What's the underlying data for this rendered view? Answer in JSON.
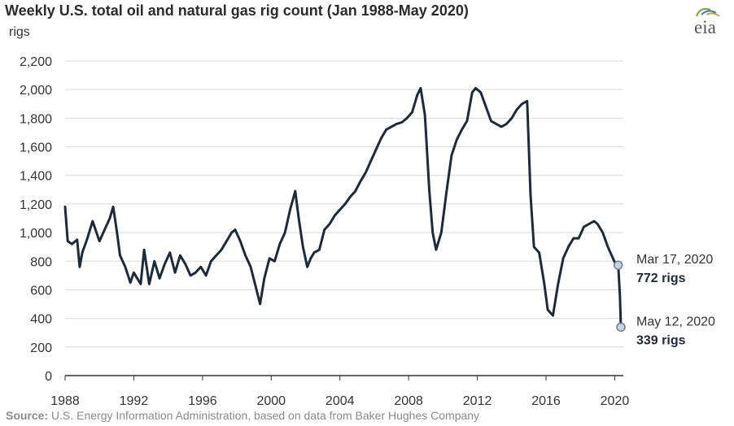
{
  "title": "Weekly U.S. total oil and natural gas rig count (Jan 1988-May 2020)",
  "unit_label": "rigs",
  "logo_text": "eia",
  "source_label": "Source:",
  "source_text": "U.S. Energy Information Administration, based on data from Baker Hughes Company",
  "colors": {
    "line": "#1b2b3c",
    "grid": "#d9d9d9",
    "marker_fill": "#c7d3de"
  },
  "chart_data": {
    "type": "line",
    "title": "Weekly U.S. total oil and natural gas rig count (Jan 1988-May 2020)",
    "ylabel": "rigs",
    "xlabel": "",
    "ylim": [
      0,
      2200
    ],
    "xlim": [
      1988,
      2020.5
    ],
    "yticks": [
      "0",
      "200",
      "400",
      "600",
      "800",
      "1,000",
      "1,200",
      "1,400",
      "1,600",
      "1,800",
      "2,000",
      "2,200"
    ],
    "xticks": [
      "1988",
      "1992",
      "1996",
      "2000",
      "2004",
      "2008",
      "2012",
      "2016",
      "2020"
    ],
    "grid": true,
    "legend": "none",
    "series": [
      {
        "x": [
          1988.0,
          1988.15,
          1988.4,
          1988.7,
          1988.85,
          1989.0,
          1989.3,
          1989.6,
          1990.0,
          1990.3,
          1990.6,
          1990.8,
          1991.0,
          1991.2,
          1991.5,
          1991.8,
          1992.0,
          1992.4,
          1992.6,
          1992.9,
          1993.2,
          1993.5,
          1993.8,
          1994.1,
          1994.4,
          1994.7,
          1995.0,
          1995.3,
          1995.6,
          1995.9,
          1996.2,
          1996.5,
          1996.8,
          1997.1,
          1997.4,
          1997.7,
          1997.9,
          1998.2,
          1998.5,
          1998.8,
          1999.1,
          1999.35,
          1999.6,
          1999.9,
          2000.2,
          2000.5,
          2000.8,
          2001.1,
          2001.4,
          2001.6,
          2001.85,
          2002.1,
          2002.3,
          2002.5,
          2002.8,
          2003.1,
          2003.4,
          2003.7,
          2004.0,
          2004.3,
          2004.6,
          2004.9,
          2005.2,
          2005.5,
          2005.8,
          2006.1,
          2006.4,
          2006.7,
          2007.0,
          2007.3,
          2007.6,
          2007.9,
          2008.2,
          2008.5,
          2008.7,
          2008.95,
          2009.2,
          2009.4,
          2009.6,
          2009.9,
          2010.2,
          2010.5,
          2010.8,
          2011.1,
          2011.4,
          2011.7,
          2011.9,
          2012.2,
          2012.5,
          2012.8,
          2013.1,
          2013.4,
          2013.7,
          2014.0,
          2014.3,
          2014.6,
          2014.9,
          2015.1,
          2015.3,
          2015.6,
          2015.9,
          2016.1,
          2016.4,
          2016.7,
          2017.0,
          2017.3,
          2017.6,
          2017.9,
          2018.2,
          2018.5,
          2018.8,
          2019.0,
          2019.3,
          2019.6,
          2019.9,
          2020.05,
          2020.2,
          2020.3,
          2020.36
        ],
        "values": [
          1180,
          940,
          920,
          950,
          760,
          860,
          960,
          1080,
          940,
          1020,
          1100,
          1180,
          1020,
          840,
          760,
          650,
          720,
          640,
          880,
          640,
          800,
          680,
          780,
          860,
          720,
          840,
          780,
          700,
          720,
          760,
          700,
          800,
          840,
          880,
          940,
          1000,
          1020,
          940,
          840,
          760,
          620,
          500,
          680,
          820,
          800,
          920,
          1000,
          1160,
          1290,
          1100,
          900,
          760,
          820,
          860,
          880,
          1020,
          1060,
          1120,
          1160,
          1200,
          1250,
          1290,
          1360,
          1420,
          1500,
          1580,
          1660,
          1720,
          1740,
          1760,
          1770,
          1800,
          1840,
          1960,
          2010,
          1820,
          1300,
          1000,
          880,
          1000,
          1280,
          1540,
          1650,
          1720,
          1780,
          1980,
          2010,
          1980,
          1880,
          1780,
          1760,
          1740,
          1760,
          1800,
          1860,
          1900,
          1920,
          1260,
          900,
          860,
          640,
          460,
          420,
          640,
          820,
          900,
          960,
          960,
          1040,
          1060,
          1080,
          1060,
          1000,
          900,
          820,
          780,
          772,
          560,
          339
        ],
        "color": "#1b2b3c"
      }
    ],
    "annotations": [
      {
        "x": 2020.2,
        "y": 772,
        "date": "Mar 17, 2020",
        "value": "772 rigs"
      },
      {
        "x": 2020.36,
        "y": 339,
        "date": "May 12, 2020",
        "value": "339 rigs"
      }
    ]
  }
}
